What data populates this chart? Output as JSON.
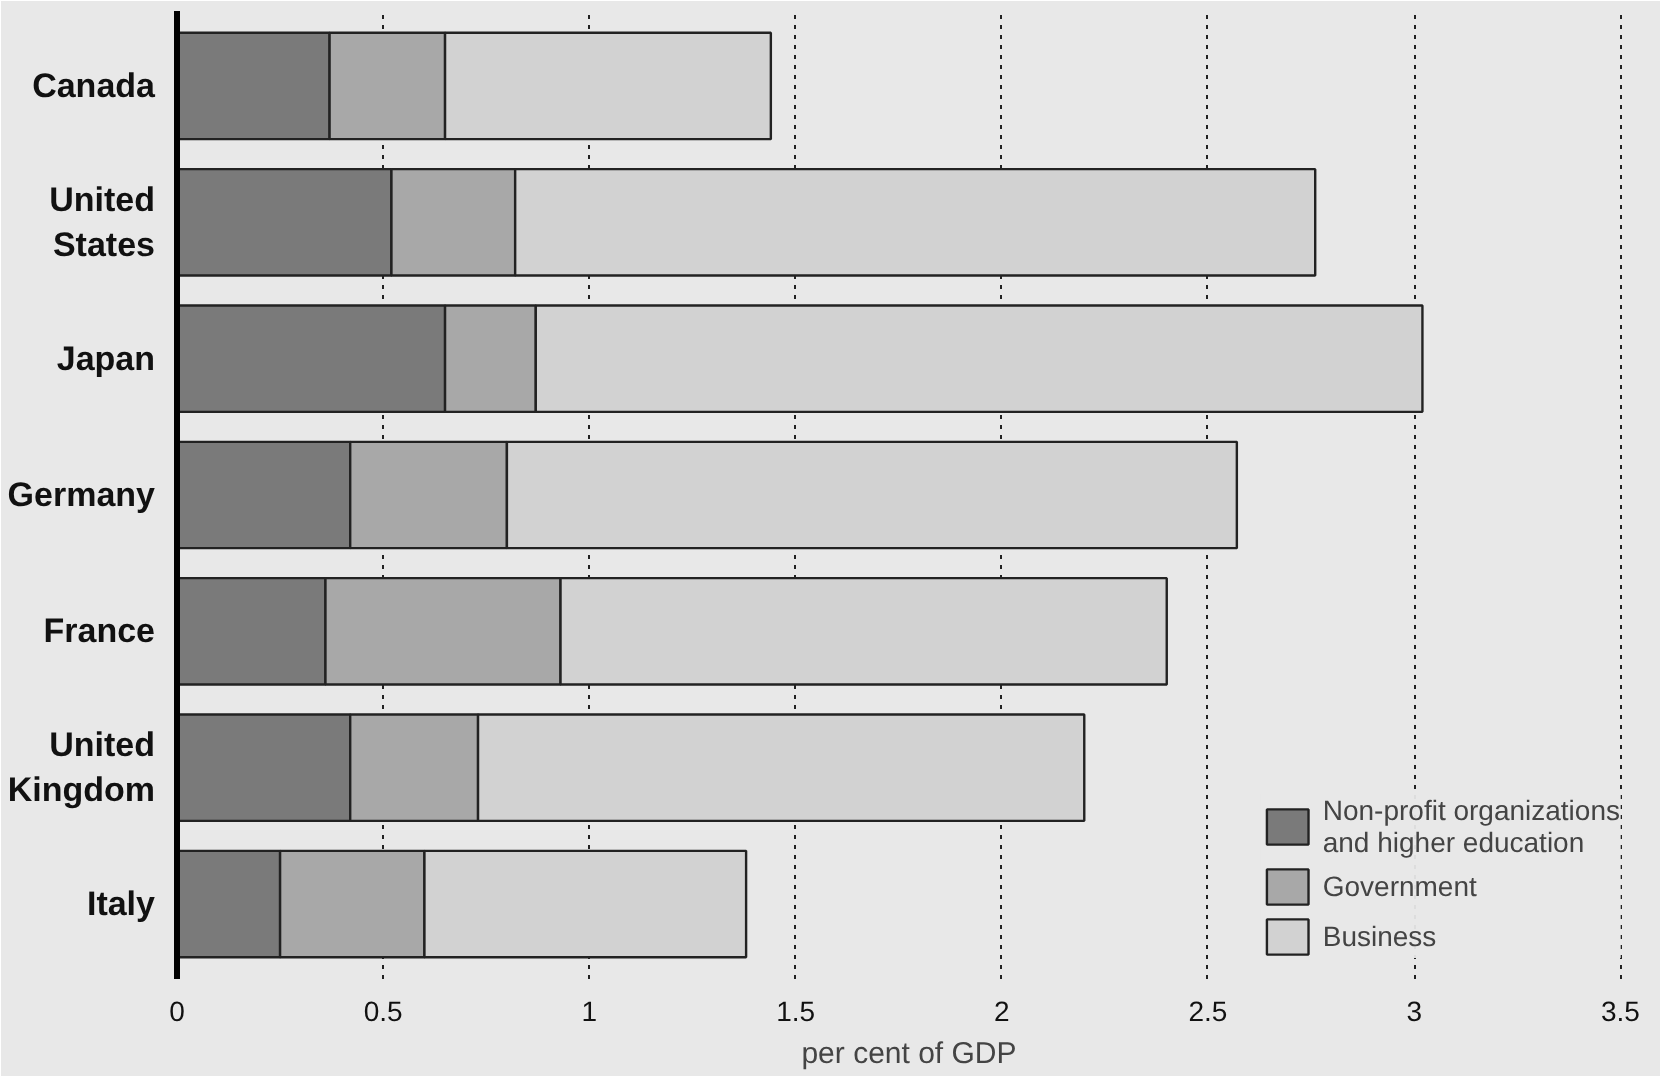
{
  "chart_data": {
    "type": "bar",
    "orientation": "horizontal",
    "stacked": true,
    "xlabel": "per cent of GDP",
    "categories": [
      "Canada",
      "United\nStates",
      "Japan",
      "Germany",
      "France",
      "United\nKingdom",
      "Italy"
    ],
    "series": [
      {
        "name": "Non-profit organizations\nand higher education",
        "color": "#7a7a7a",
        "values": [
          0.37,
          0.52,
          0.65,
          0.42,
          0.36,
          0.42,
          0.25
        ]
      },
      {
        "name": "Government",
        "color": "#a8a8a8",
        "values": [
          0.28,
          0.3,
          0.22,
          0.38,
          0.57,
          0.31,
          0.35
        ]
      },
      {
        "name": "Business",
        "color": "#d2d2d2",
        "values": [
          0.79,
          1.94,
          2.15,
          1.77,
          1.47,
          1.47,
          0.78
        ]
      }
    ],
    "xlim": [
      0,
      3.55
    ],
    "xticks": [
      0,
      0.5,
      1,
      1.5,
      2,
      2.5,
      3,
      3.5
    ],
    "grid": "x",
    "legend": "bottom right"
  }
}
